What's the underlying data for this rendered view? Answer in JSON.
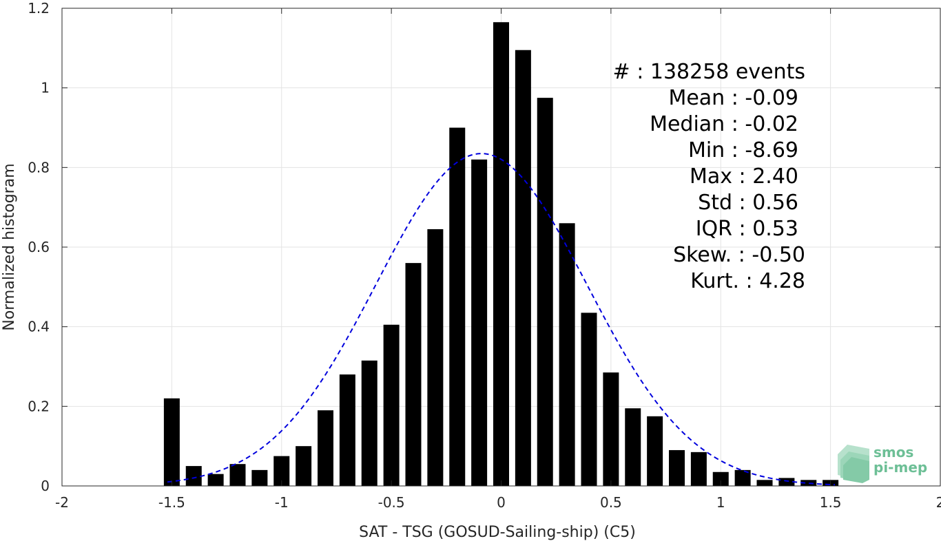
{
  "chart_data": {
    "type": "bar",
    "xlabel": "SAT - TSG (GOSUD-Sailing-ship) (C5)",
    "ylabel": "Normalized histogram",
    "xlim": [
      -2,
      2
    ],
    "ylim": [
      0,
      1.2
    ],
    "xticks": [
      -2,
      -1.5,
      -1,
      -0.5,
      0,
      0.5,
      1,
      1.5,
      2
    ],
    "xtick_labels": [
      "-2",
      "-1.5",
      "-1",
      "-0.5",
      "0",
      "0.5",
      "1",
      "1.5",
      "2"
    ],
    "yticks": [
      0,
      0.2,
      0.4,
      0.6,
      0.8,
      1,
      1.2
    ],
    "ytick_labels": [
      "0",
      "0.2",
      "0.4",
      "0.6",
      "0.8",
      "1",
      "1.2"
    ],
    "grid": true,
    "bar_color": "#000000",
    "bin_centers": [
      -1.5,
      -1.4,
      -1.3,
      -1.2,
      -1.1,
      -1.0,
      -0.9,
      -0.8,
      -0.7,
      -0.6,
      -0.5,
      -0.4,
      -0.3,
      -0.2,
      -0.1,
      0.0,
      0.1,
      0.2,
      0.3,
      0.4,
      0.5,
      0.6,
      0.7,
      0.8,
      0.9,
      1.0,
      1.1,
      1.2,
      1.3,
      1.4,
      1.5
    ],
    "values": [
      0.22,
      0.05,
      0.03,
      0.055,
      0.04,
      0.075,
      0.1,
      0.19,
      0.28,
      0.315,
      0.405,
      0.56,
      0.645,
      0.9,
      0.82,
      1.165,
      1.095,
      0.975,
      0.66,
      0.435,
      0.285,
      0.195,
      0.175,
      0.09,
      0.085,
      0.035,
      0.04,
      0.015,
      0.02,
      0.015,
      0.015
    ],
    "fit_curve": {
      "type": "gaussian",
      "mean": -0.09,
      "std": 0.48,
      "peak": 0.835,
      "x_range": [
        -1.52,
        1.52
      ],
      "color": "#0000dd",
      "style": "dashed"
    }
  },
  "stats": [
    {
      "label": "#  : 138258 events"
    },
    {
      "label": "Mean : -0.09"
    },
    {
      "label": "Median : -0.02"
    },
    {
      "label": "Min : -8.69"
    },
    {
      "label": "Max : 2.40"
    },
    {
      "label": "Std : 0.56"
    },
    {
      "label": "IQR : 0.53"
    },
    {
      "label": "Skew. : -0.50"
    },
    {
      "label": "Kurt. : 4.28"
    }
  ],
  "logo": {
    "line1": "smos",
    "line2": "pi-mep",
    "color": "#6dbf96"
  }
}
